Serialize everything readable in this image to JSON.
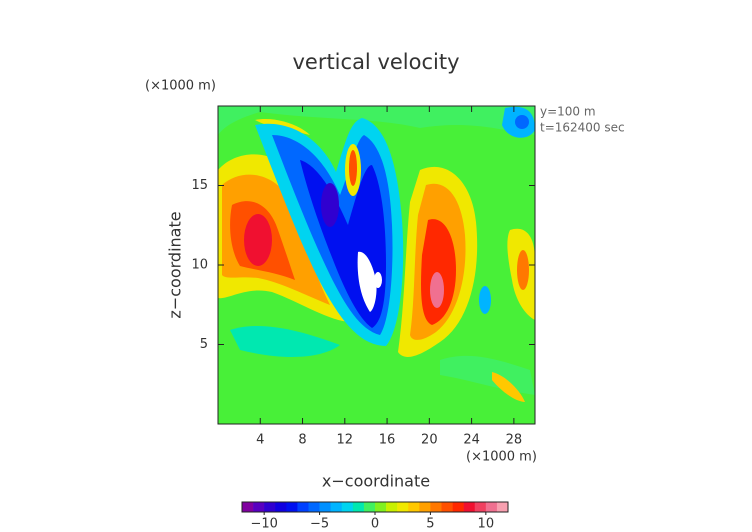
{
  "chart_data": {
    "type": "contour",
    "title": "vertical velocity",
    "xlabel": "x−coordinate",
    "ylabel": "z−coordinate",
    "xunit": "(×1000 m)",
    "yunit": "(×1000 m)",
    "annotations": [
      "y=100 m",
      "t=162400 sec"
    ],
    "xlim": [
      0,
      30
    ],
    "xticks": [
      4,
      8,
      12,
      16,
      20,
      24,
      28
    ],
    "ylim": [
      0,
      20
    ],
    "yticks": [
      5,
      10,
      15
    ],
    "colorbar": {
      "clim": [
        -12,
        12
      ],
      "ticks": [
        {
          "value": -10,
          "label": "−10"
        },
        {
          "value": -5,
          "label": "−5"
        },
        0,
        5,
        10
      ],
      "colors": [
        "#8000a0",
        "#5800c0",
        "#3000d0",
        "#1000e0",
        "#0010f0",
        "#0040ff",
        "#0068ff",
        "#0090ff",
        "#00b4ff",
        "#00d4f0",
        "#00e8b0",
        "#40f060",
        "#80f020",
        "#c8f000",
        "#f0e800",
        "#ffc800",
        "#ffa000",
        "#ff7800",
        "#ff5000",
        "#ff2800",
        "#f01030",
        "#f04060",
        "#f07090",
        "#f8a0b0"
      ]
    }
  }
}
